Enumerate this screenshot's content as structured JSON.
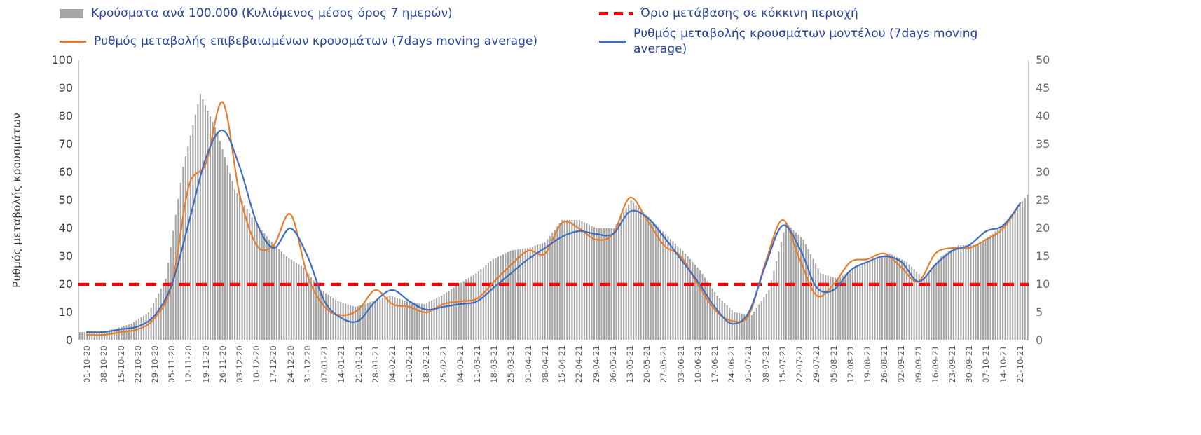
{
  "colors": {
    "legend_text": "#24459b",
    "axis_ticks_left": "#3a3a3a",
    "axis_ticks_right": "#6e6e6e",
    "x_labels": "#5c5c5c",
    "axis_title": "#3a3a3a",
    "axis_line": "#c9c9c9",
    "background": "#ffffff"
  },
  "chart_data": {
    "type": "combo_bar_line",
    "title": "",
    "legend_position": "top",
    "grid": false,
    "left_axis": {
      "label": "Ρυθμός μεταβολής κρουσμάτων",
      "min": 0,
      "max": 100,
      "step": 10
    },
    "right_axis": {
      "label": "",
      "min": 0,
      "max": 50,
      "step": 5
    },
    "categories": [
      "01-10-20",
      "08-10-20",
      "15-10-20",
      "22-10-20",
      "29-10-20",
      "05-11-20",
      "12-11-20",
      "19-11-20",
      "26-11-20",
      "03-12-20",
      "10-12-20",
      "17-12-20",
      "24-12-20",
      "31-12-20",
      "07-01-21",
      "14-01-21",
      "21-01-21",
      "28-01-21",
      "04-02-21",
      "11-02-21",
      "18-02-21",
      "25-02-21",
      "04-03-21",
      "11-03-21",
      "18-03-21",
      "25-03-21",
      "01-04-21",
      "08-04-21",
      "15-04-21",
      "22-04-21",
      "29-04-21",
      "06-05-21",
      "13-05-21",
      "20-05-21",
      "27-05-21",
      "03-06-21",
      "10-06-21",
      "17-06-21",
      "24-06-21",
      "01-07-21",
      "08-07-21",
      "15-07-21",
      "22-07-21",
      "29-07-21",
      "05-08-21",
      "12-08-21",
      "19-08-21",
      "26-08-21",
      "02-09-21",
      "09-09-21",
      "16-09-21",
      "23-09-21",
      "30-09-21",
      "07-10-21",
      "14-10-21",
      "21-10-21"
    ],
    "series": [
      {
        "key": "cases-bars",
        "name": "Κρούσματα ανά 100.000 (Κυλιόμενος μέσος όρος 7 ημερών)",
        "type": "bar",
        "axis": "right",
        "color": "#a6a6a6",
        "values": [
          1.5,
          1.5,
          2,
          3,
          5,
          11,
          31,
          44,
          37,
          27,
          22,
          18,
          15,
          13,
          9,
          7,
          6,
          7,
          8,
          7,
          6.5,
          8,
          10,
          12,
          14.5,
          16,
          16.5,
          17.5,
          21.5,
          21.5,
          20,
          20,
          25,
          22,
          19,
          16,
          12.5,
          8,
          5,
          4.5,
          9,
          21,
          18,
          12,
          11,
          13,
          14.5,
          15.5,
          14,
          11,
          15,
          17,
          17,
          19,
          22,
          26
        ]
      },
      {
        "key": "red-threshold-line",
        "name": "Όριο μετάβασης σε κόκκινη περιοχή",
        "type": "threshold",
        "axis": "left",
        "color": "#ff0000",
        "value": 20
      },
      {
        "key": "confirmed-rate-line",
        "name": "Ρυθμός μεταβολής επιβεβαιωμένων κρουσμάτων (7days moving average)",
        "type": "line",
        "axis": "left",
        "color": "#e87d2d",
        "values": [
          2,
          2,
          3,
          4,
          8,
          20,
          55,
          63,
          85,
          52,
          34,
          34,
          45,
          23,
          12,
          9,
          11,
          18,
          13,
          12,
          10,
          13,
          14,
          15,
          21,
          27,
          32,
          31,
          42,
          40,
          36,
          38,
          51,
          43,
          34,
          30,
          20,
          11,
          7,
          9,
          28,
          43,
          29,
          16,
          20,
          28,
          29,
          31,
          26,
          21,
          31,
          33,
          33,
          36,
          40,
          49
        ]
      },
      {
        "key": "model-rate-line",
        "name": "Ρυθμός μεταβολής κρουσμάτων μοντέλου (7days moving average)",
        "type": "line",
        "axis": "left",
        "color": "#3f6dbf",
        "values": [
          3,
          3,
          4,
          5,
          9,
          20,
          42,
          65,
          75,
          62,
          42,
          33,
          40,
          30,
          14,
          8,
          7,
          14,
          18,
          14,
          11,
          12,
          13,
          14,
          19,
          24,
          29,
          33,
          37,
          39,
          38,
          38,
          46,
          44,
          37,
          29,
          21,
          12,
          6,
          10,
          27,
          41,
          33,
          19,
          18,
          25,
          28,
          30,
          28,
          21,
          27,
          32,
          34,
          39,
          41,
          49
        ]
      }
    ]
  }
}
